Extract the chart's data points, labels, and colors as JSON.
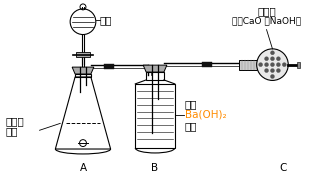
{
  "bg_color": "#ffffff",
  "line_color": "#000000",
  "labels": {
    "salt_acid": "盐酸",
    "alkali_lime": "碱石灰",
    "alkali_lime_sub": "（含CaO 和NaOH）",
    "supp_label1": "补钙剂",
    "supp_label2": "样品",
    "sufficient": "足量",
    "ba_oh": "Ba(OH)₂",
    "solution": "溶液",
    "A": "A",
    "B": "B",
    "C": "C"
  },
  "ba_oh_color": "#FF8C00",
  "fig_width": 3.14,
  "fig_height": 1.75,
  "dpi": 100
}
